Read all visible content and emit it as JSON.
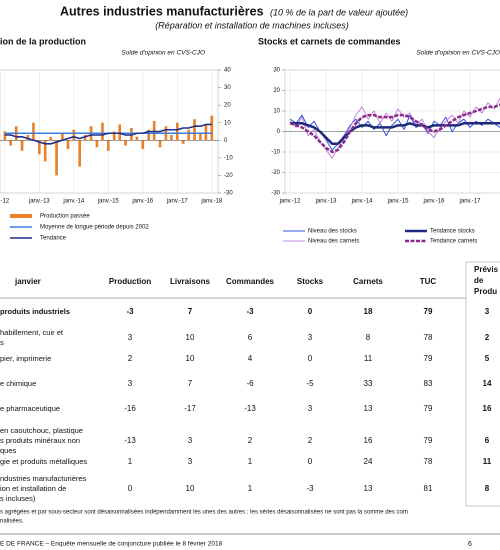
{
  "header": {
    "title": "Autres industries manufacturières",
    "title_note": "(10 % de la part de valeur ajoutée)",
    "subtitle": "(Réparation et installation de machines incluses)"
  },
  "chart_data": [
    {
      "type": "bar",
      "title": "ion de la production",
      "subtitle": "Solde d'opinion en CVS-CJO",
      "x": [
        2012,
        2012.17,
        2012.33,
        2012.5,
        2012.67,
        2012.83,
        2013,
        2013.17,
        2013.33,
        2013.5,
        2013.67,
        2013.83,
        2014,
        2014.17,
        2014.33,
        2014.5,
        2014.67,
        2014.83,
        2015,
        2015.17,
        2015.33,
        2015.5,
        2015.67,
        2015.83,
        2016,
        2016.17,
        2016.33,
        2016.5,
        2016.67,
        2016.83,
        2017,
        2017.17,
        2017.33,
        2017.5,
        2017.67,
        2017.83,
        2018
      ],
      "xlim": [
        2011.86,
        2018.18
      ],
      "xticks": [
        {
          "value": 2012,
          "label": "-12"
        },
        {
          "value": 2013,
          "label": "janv.-13"
        },
        {
          "value": 2014,
          "label": "janv.-14"
        },
        {
          "value": 2015,
          "label": "janv.-15"
        },
        {
          "value": 2016,
          "label": "janv.-16"
        },
        {
          "value": 2017,
          "label": "janv.-17"
        },
        {
          "value": 2018,
          "label": "janv.-18"
        }
      ],
      "ylim": [
        -30,
        40
      ],
      "yticks": [
        -30,
        -20,
        -10,
        0,
        10,
        20,
        30,
        40
      ],
      "y_axis_side": "right",
      "grid": false,
      "series": [
        {
          "name": "Production passée",
          "color": "#e8812a",
          "type": "bar",
          "values": [
            5,
            -3,
            8,
            -6,
            3,
            10,
            -8,
            -12,
            2,
            -20,
            4,
            -5,
            6,
            -15,
            3,
            8,
            -4,
            10,
            -6,
            5,
            9,
            -3,
            7,
            2,
            -5,
            6,
            11,
            -4,
            8,
            3,
            10,
            -2,
            6,
            12,
            4,
            9,
            14
          ]
        },
        {
          "name": "Moyenne de longue période depuis 2002",
          "color": "#3b7dd8",
          "type": "line",
          "values": [
            4,
            4,
            4,
            4,
            4,
            4,
            4,
            4,
            4,
            4,
            4,
            4,
            4,
            4,
            4,
            4,
            4,
            4,
            4,
            4,
            4,
            4,
            4,
            4,
            4,
            4,
            4,
            4,
            4,
            4,
            4,
            4,
            4,
            4,
            4,
            4,
            4
          ]
        },
        {
          "name": "Tendance",
          "color": "#1f2f8a",
          "type": "line",
          "values": [
            3,
            3,
            2,
            2,
            1,
            0,
            -1,
            -2,
            -2,
            -1,
            0,
            1,
            2,
            1,
            2,
            3,
            3,
            3,
            4,
            4,
            4,
            3,
            3,
            4,
            4,
            5,
            5,
            5,
            6,
            6,
            6,
            7,
            7,
            8,
            8,
            9,
            9
          ]
        }
      ]
    },
    {
      "type": "line",
      "title": "Stocks et carnets de commandes",
      "subtitle": "Solde d'opinion en CVS-CJO",
      "x": [
        2012,
        2012.17,
        2012.33,
        2012.5,
        2012.67,
        2012.83,
        2013,
        2013.17,
        2013.33,
        2013.5,
        2013.67,
        2013.83,
        2014,
        2014.17,
        2014.33,
        2014.5,
        2014.67,
        2014.83,
        2015,
        2015.17,
        2015.33,
        2015.5,
        2015.67,
        2015.83,
        2016,
        2016.17,
        2016.33,
        2016.5,
        2016.67,
        2016.83,
        2017,
        2017.17,
        2017.33,
        2017.5,
        2017.67,
        2017.83,
        2018,
        2018.17,
        2018.33,
        2018.5
      ],
      "xlim": [
        2011.86,
        2018.6
      ],
      "xticks": [
        {
          "value": 2012,
          "label": "janv.-12"
        },
        {
          "value": 2013,
          "label": "janv.-13"
        },
        {
          "value": 2014,
          "label": "janv.-14"
        },
        {
          "value": 2015,
          "label": "janv.-15"
        },
        {
          "value": 2016,
          "label": "janv.-16"
        },
        {
          "value": 2017,
          "label": "janv.-17"
        }
      ],
      "ylim": [
        -30,
        30
      ],
      "yticks": [
        -30,
        -20,
        -10,
        0,
        10,
        20,
        30
      ],
      "y_axis_side": "left",
      "grid": true,
      "series": [
        {
          "name": "Niveau des stocks",
          "color": "#3355dd",
          "type": "line",
          "width": 1,
          "values": [
            6,
            4,
            8,
            2,
            5,
            0,
            -4,
            -9,
            -6,
            -2,
            3,
            6,
            2,
            5,
            1,
            4,
            -2,
            3,
            6,
            1,
            8,
            2,
            4,
            -1,
            5,
            3,
            7,
            0,
            4,
            6,
            2,
            5,
            3,
            6,
            4,
            2,
            5,
            3,
            4,
            5
          ]
        },
        {
          "name": "Niveau des carnets",
          "color": "#c585dc",
          "type": "line",
          "width": 1,
          "values": [
            5,
            2,
            7,
            -2,
            1,
            -5,
            -9,
            -13,
            -8,
            -3,
            2,
            8,
            12,
            6,
            10,
            4,
            9,
            5,
            11,
            7,
            9,
            3,
            6,
            0,
            -3,
            2,
            5,
            8,
            4,
            10,
            7,
            12,
            9,
            14,
            11,
            16,
            13,
            15,
            17,
            14
          ]
        },
        {
          "name": "Tendance stocks",
          "color": "#1f2a7a",
          "type": "line",
          "width": 2.5,
          "values": [
            4,
            4,
            4,
            3,
            2,
            0,
            -3,
            -6,
            -6,
            -3,
            0,
            2,
            3,
            3,
            2,
            2,
            2,
            2,
            3,
            3,
            4,
            3,
            3,
            2,
            3,
            3,
            3,
            3,
            3,
            4,
            4,
            4,
            4,
            4,
            4,
            4,
            4,
            4,
            4,
            4
          ]
        },
        {
          "name": "Tendance carnets",
          "color": "#8a2b8a",
          "type": "line",
          "width": 2.5,
          "dashed": true,
          "values": [
            4,
            3,
            2,
            0,
            -2,
            -5,
            -8,
            -10,
            -9,
            -5,
            0,
            4,
            7,
            8,
            8,
            7,
            7,
            7,
            8,
            8,
            7,
            5,
            3,
            1,
            0,
            1,
            3,
            5,
            7,
            8,
            9,
            10,
            11,
            12,
            12,
            13,
            14,
            14,
            15,
            15
          ]
        }
      ]
    }
  ],
  "table": {
    "columns": [
      "janvier",
      "Production",
      "Livraisons",
      "Commandes",
      "Stocks",
      "Carnets",
      "TUC"
    ],
    "forecast_header": [
      "Prévis",
      "de",
      "Produ"
    ],
    "rows": [
      {
        "label": [
          "produits industriels"
        ],
        "bold": true,
        "values": [
          -3,
          7,
          -3,
          0,
          18,
          79,
          3
        ]
      },
      {
        "label": [
          "habillement, cuir et",
          "s"
        ],
        "values": [
          3,
          10,
          6,
          3,
          8,
          78,
          2
        ]
      },
      {
        "label": [
          "pier, imprimerie"
        ],
        "values": [
          2,
          10,
          4,
          0,
          11,
          79,
          5
        ]
      },
      {
        "label": [
          "e chimique"
        ],
        "values": [
          3,
          7,
          -6,
          -5,
          33,
          83,
          14
        ]
      },
      {
        "label": [
          "e pharmaceutique"
        ],
        "values": [
          -16,
          -17,
          -13,
          3,
          13,
          79,
          16
        ]
      },
      {
        "label": [
          "en caoutchouc, plastique",
          "s produits minéraux non",
          "ques"
        ],
        "values": [
          -13,
          3,
          2,
          2,
          16,
          79,
          6
        ]
      },
      {
        "label": [
          "gie et produits métalliques"
        ],
        "values": [
          1,
          3,
          1,
          0,
          24,
          78,
          11
        ]
      },
      {
        "label": [
          "ndustries manufacturières",
          "ion et installation de",
          "s incluses)"
        ],
        "values": [
          0,
          10,
          1,
          -3,
          13,
          81,
          8
        ]
      }
    ]
  },
  "footnote": [
    "s agrégées et par sous-secteur sont désaisonnalisées indépendamment les unes des autres : les séries désaisonnalisées ne sont pas la somme des com",
    "nalisées."
  ],
  "footer": {
    "text": "E DE FRANCE –  Enquête mensuelle de conjoncture publiée le 8 février 2018",
    "page": "6"
  }
}
